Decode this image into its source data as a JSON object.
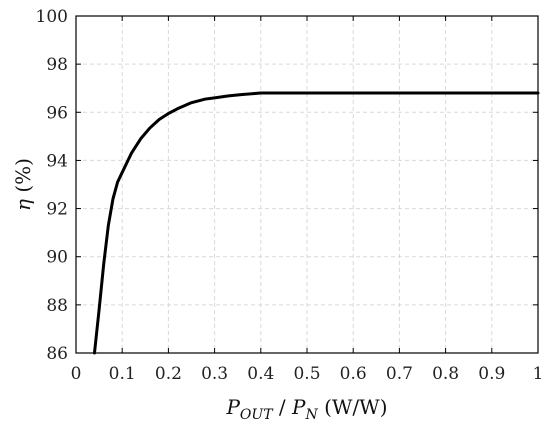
{
  "chart_data": {
    "type": "line",
    "xlabel": {
      "main1": "P",
      "sub1": "OUT",
      "sep": " / ",
      "main2": "P",
      "sub2": "N",
      "unit": " (W/W)"
    },
    "ylabel": {
      "symbol": "η",
      "unit": " (%)"
    },
    "xlim": [
      0,
      1
    ],
    "ylim": [
      86,
      100
    ],
    "xticks": [
      "0",
      "0.1",
      "0.2",
      "0.3",
      "0.4",
      "0.5",
      "0.6",
      "0.7",
      "0.8",
      "0.9",
      "1"
    ],
    "yticks": [
      "86",
      "88",
      "90",
      "92",
      "94",
      "96",
      "98",
      "100"
    ],
    "grid": true,
    "series": [
      {
        "color": "#000000",
        "x": [
          0.04,
          0.05,
          0.06,
          0.07,
          0.08,
          0.09,
          0.1,
          0.12,
          0.14,
          0.16,
          0.18,
          0.2,
          0.22,
          0.25,
          0.28,
          0.3,
          0.33,
          0.36,
          0.4,
          0.5,
          0.6,
          0.7,
          0.8,
          0.9,
          1.0
        ],
        "y": [
          86.0,
          87.8,
          89.7,
          91.3,
          92.4,
          93.1,
          93.5,
          94.3,
          94.9,
          95.35,
          95.7,
          95.95,
          96.15,
          96.4,
          96.55,
          96.6,
          96.68,
          96.74,
          96.8,
          96.8,
          96.8,
          96.8,
          96.8,
          96.8,
          96.8
        ]
      }
    ]
  }
}
